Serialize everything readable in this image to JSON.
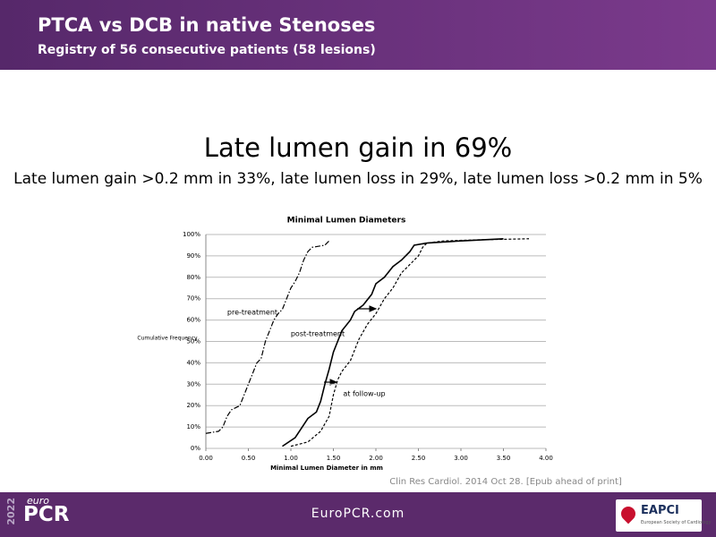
{
  "header": {
    "title": "PTCA vs DCB in native Stenoses",
    "subtitle": "Registry of 56 consecutive patients (58 lesions)"
  },
  "headline": "Late lumen gain in 69%",
  "subheadline": "Late lumen gain >0.2 mm in 33%, late lumen loss in 29%, late lumen loss >0.2 mm in 5%",
  "citation": "Clin Res Cardiol. 2014 Oct 28. [Epub ahead of print]",
  "footer": {
    "url": "EuroPCR.com",
    "logo_year": "2022",
    "logo_small": "euro",
    "logo_big": "PCR",
    "partner": "EAPCI",
    "partner_sub": "European Society of Cardiology"
  },
  "chart_data": {
    "type": "line",
    "title": "Minimal Lumen Diameters",
    "x_label": "Minimal Lumen Diameter in mm",
    "y_label": "Cumulative Frequency",
    "xlim": [
      0,
      4
    ],
    "ylim": [
      0,
      100
    ],
    "grid": true,
    "xticks": [
      {
        "value": 0,
        "label": "0.00"
      },
      {
        "value": 0.5,
        "label": "0.50"
      },
      {
        "value": 1,
        "label": "1.00"
      },
      {
        "value": 1.5,
        "label": "1.50"
      },
      {
        "value": 2,
        "label": "2.00"
      },
      {
        "value": 2.5,
        "label": "2.50"
      },
      {
        "value": 3,
        "label": "3.00"
      },
      {
        "value": 3.5,
        "label": "3.50"
      },
      {
        "value": 4,
        "label": "4.00"
      }
    ],
    "yticks": [
      {
        "value": 0,
        "label": "0%"
      },
      {
        "value": 10,
        "label": "10%"
      },
      {
        "value": 20,
        "label": "20%"
      },
      {
        "value": 30,
        "label": "30%"
      },
      {
        "value": 40,
        "label": "40%"
      },
      {
        "value": 50,
        "label": "50%"
      },
      {
        "value": 60,
        "label": "60%"
      },
      {
        "value": 70,
        "label": "70%"
      },
      {
        "value": 80,
        "label": "80%"
      },
      {
        "value": 90,
        "label": "90%"
      },
      {
        "value": 100,
        "label": "100%"
      }
    ],
    "series": [
      {
        "name": "pre-treatment",
        "color": "#000000",
        "style": "dashdot",
        "x": [
          0,
          0.15,
          0.2,
          0.25,
          0.3,
          0.4,
          0.45,
          0.5,
          0.55,
          0.6,
          0.65,
          0.7,
          0.75,
          0.8,
          0.85,
          0.9,
          0.95,
          1.0,
          1.05,
          1.1,
          1.15,
          1.2,
          1.25,
          1.4,
          1.45
        ],
        "values": [
          7,
          8,
          10,
          15,
          18,
          20,
          25,
          30,
          35,
          40,
          42,
          50,
          55,
          60,
          63,
          65,
          70,
          75,
          78,
          82,
          88,
          92,
          94,
          95,
          97
        ]
      },
      {
        "name": "post-treatment",
        "color": "#000000",
        "style": "solid",
        "x": [
          0.9,
          1.05,
          1.1,
          1.2,
          1.3,
          1.35,
          1.4,
          1.45,
          1.5,
          1.55,
          1.6,
          1.7,
          1.75,
          1.85,
          1.95,
          2.0,
          2.1,
          2.2,
          2.3,
          2.4,
          2.45,
          2.6,
          3.0,
          3.5
        ],
        "values": [
          1,
          5,
          8,
          14,
          17,
          22,
          30,
          37,
          45,
          50,
          55,
          60,
          64,
          67,
          72,
          77,
          80,
          85,
          88,
          92,
          95,
          96,
          97,
          98
        ]
      },
      {
        "name": "at follow-up",
        "color": "#000000",
        "style": "dashed",
        "x": [
          1.0,
          1.2,
          1.35,
          1.45,
          1.5,
          1.55,
          1.6,
          1.7,
          1.75,
          1.8,
          1.9,
          2.0,
          2.1,
          2.2,
          2.3,
          2.4,
          2.5,
          2.55,
          2.6,
          2.8,
          3.2,
          3.8
        ],
        "values": [
          1,
          3,
          8,
          15,
          25,
          32,
          36,
          41,
          46,
          51,
          58,
          63,
          70,
          75,
          82,
          86,
          90,
          94,
          96,
          97,
          97.5,
          98
        ]
      }
    ]
  }
}
